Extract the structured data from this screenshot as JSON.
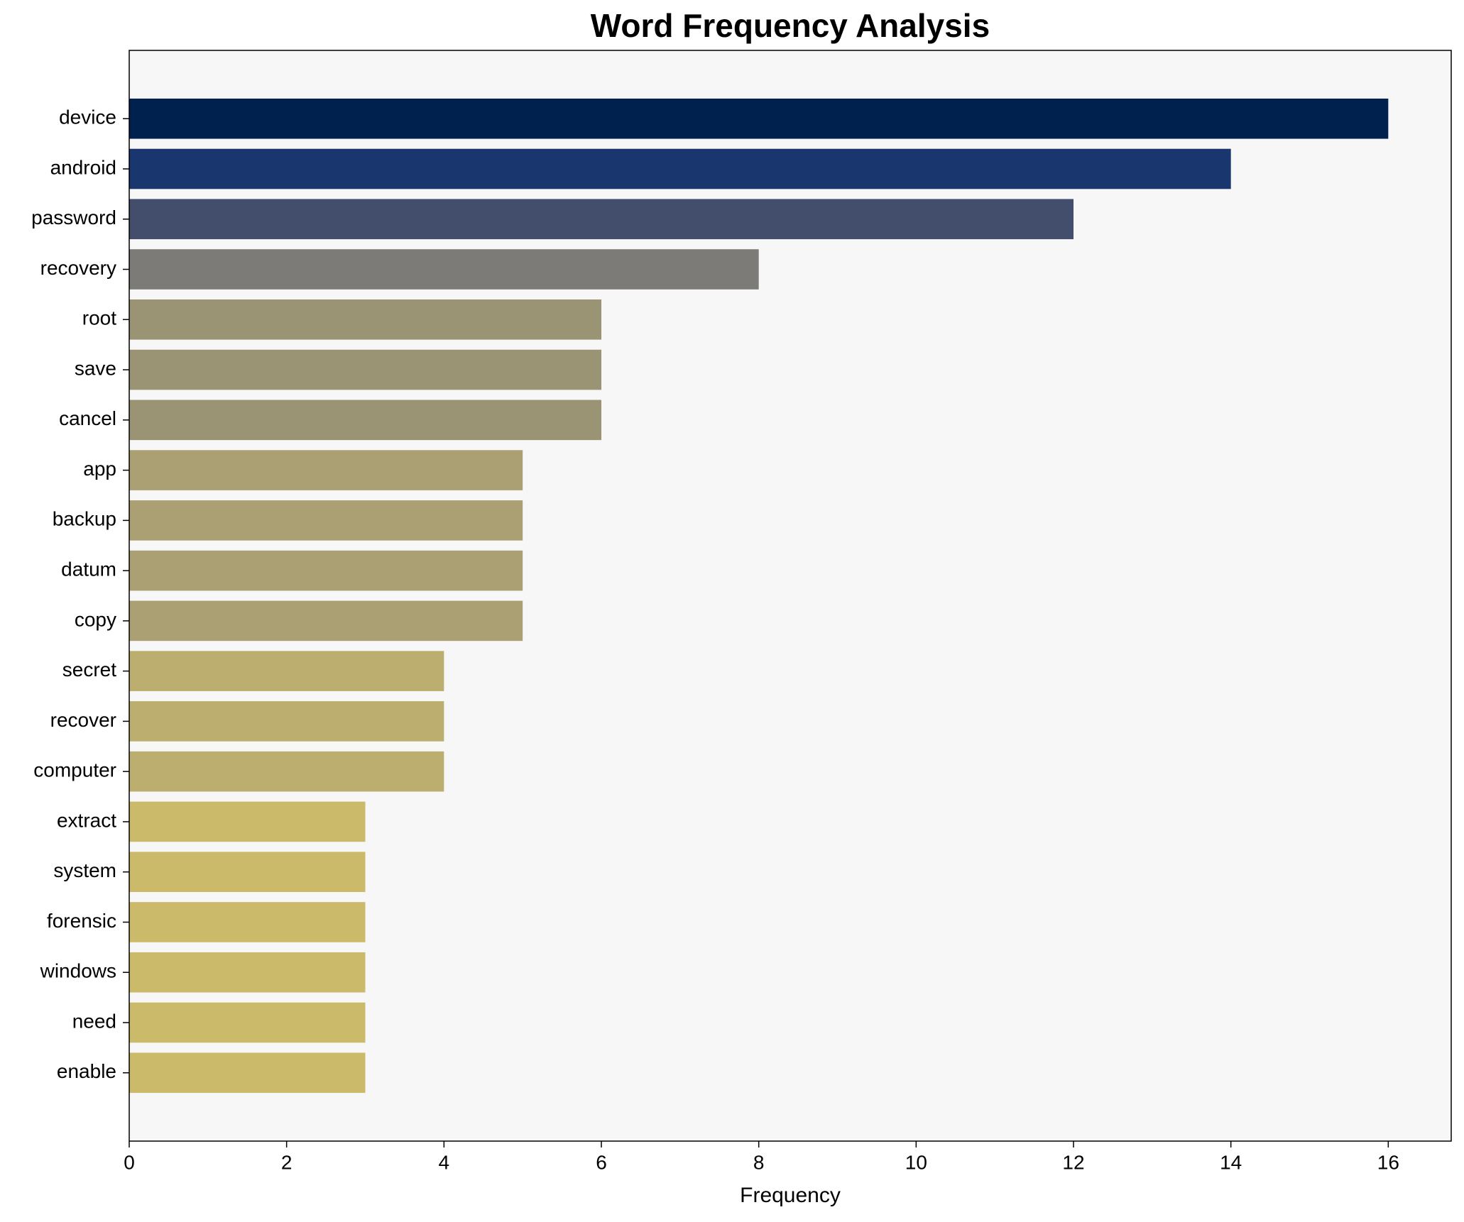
{
  "chart_data": {
    "type": "barh",
    "title": "Word Frequency Analysis",
    "xlabel": "Frequency",
    "categories": [
      "device",
      "android",
      "password",
      "recovery",
      "root",
      "save",
      "cancel",
      "app",
      "backup",
      "datum",
      "copy",
      "secret",
      "recover",
      "computer",
      "extract",
      "system",
      "forensic",
      "windows",
      "need",
      "enable"
    ],
    "values": [
      16,
      14,
      12,
      8,
      6,
      6,
      6,
      5,
      5,
      5,
      5,
      4,
      4,
      4,
      3,
      3,
      3,
      3,
      3,
      3
    ],
    "colors": [
      "#00214e",
      "#1a366e",
      "#434e6c",
      "#7c7b78",
      "#9b9474",
      "#9b9474",
      "#9b9474",
      "#aaa074",
      "#aaa074",
      "#aaa074",
      "#aaa074",
      "#bbae6e",
      "#bbae6e",
      "#bbae6e",
      "#cbba69",
      "#cbba69",
      "#cbba69",
      "#cbba69",
      "#cbba69",
      "#cbba69"
    ],
    "xlim": [
      0,
      16.8
    ],
    "xticks": [
      0,
      2,
      4,
      6,
      8,
      10,
      12,
      14,
      16
    ],
    "background": "#f7f7f7"
  }
}
